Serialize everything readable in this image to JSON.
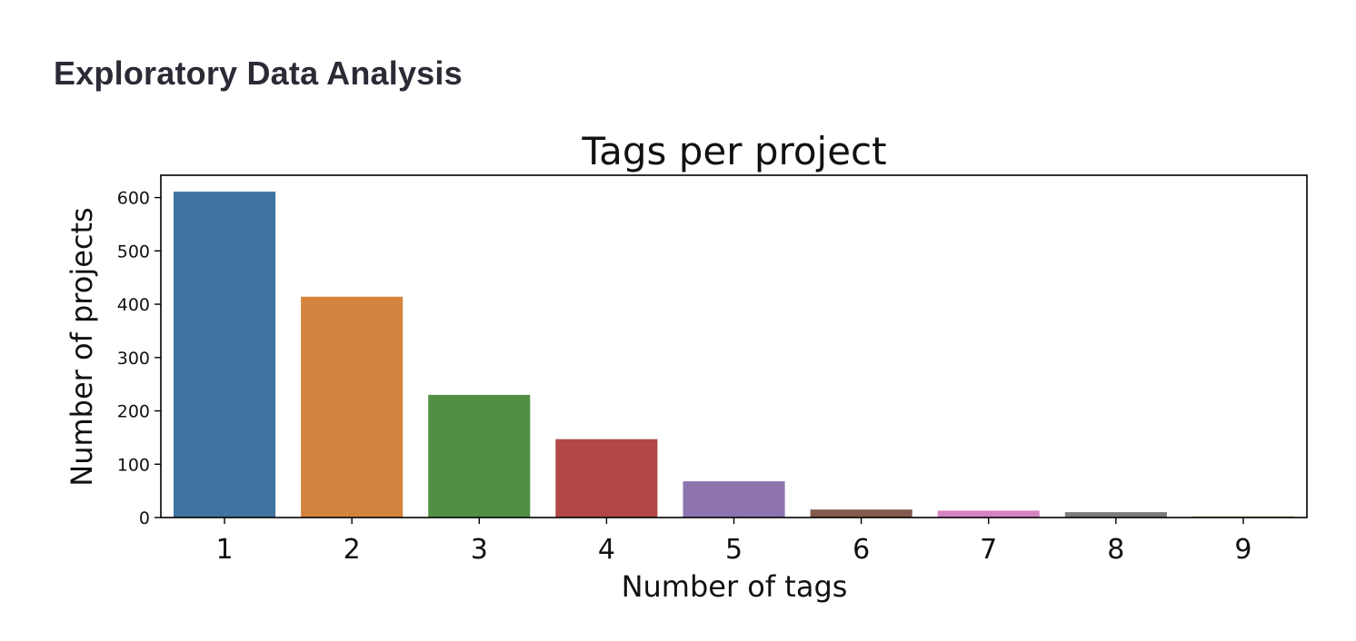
{
  "page": {
    "section_heading": "Exploratory Data Analysis"
  },
  "chart_data": {
    "type": "bar",
    "title": "Tags per project",
    "xlabel": "Number of tags",
    "ylabel": "Number of projects",
    "categories": [
      "1",
      "2",
      "3",
      "4",
      "5",
      "6",
      "7",
      "8",
      "9"
    ],
    "values": [
      611,
      414,
      230,
      147,
      68,
      15,
      13,
      10,
      2
    ],
    "colors": [
      "#3f73a0",
      "#d4843e",
      "#519043",
      "#b24746",
      "#8d74ae",
      "#83594d",
      "#d684c1",
      "#7b7b7b",
      "#a3a33c"
    ],
    "ylim": [
      0,
      640
    ],
    "yticks": [
      0,
      100,
      200,
      300,
      400,
      500,
      600
    ],
    "grid": false,
    "legend": "none"
  }
}
